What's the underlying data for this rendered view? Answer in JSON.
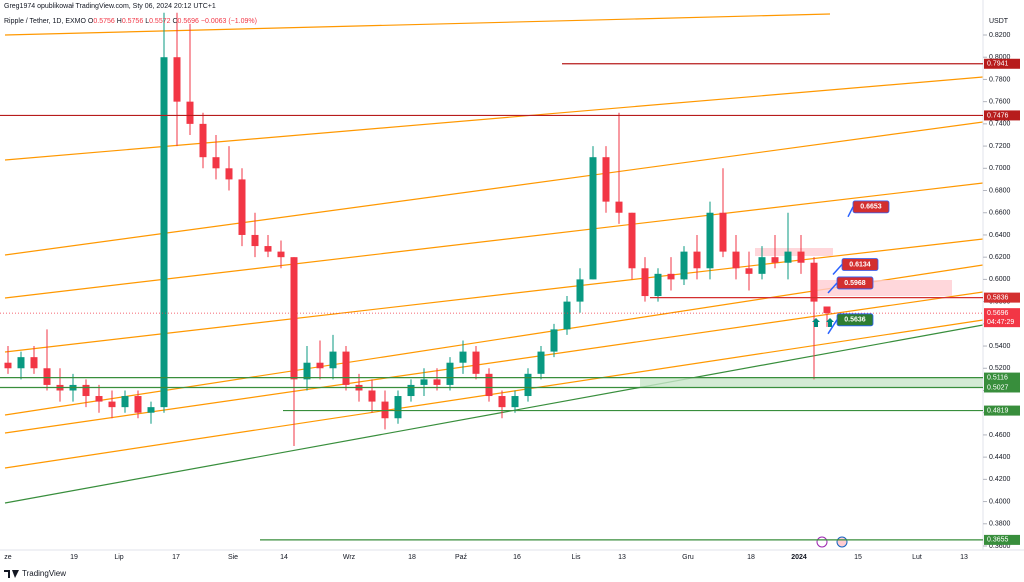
{
  "chart_data": {
    "type": "candlestick",
    "title": "Greg1974 opublikował TradingView.com, Sty 06, 2024 20:12 UTC+1",
    "symbol": "Ripple / Tether, 1D, EXMO",
    "ohlc_letters": [
      "O",
      "H",
      "L",
      "C"
    ],
    "change": "−0.0063 (−1.09%)",
    "currency": "USDT",
    "countdown": "04:47:29",
    "brand": "TradingView",
    "up_color": "#089981",
    "down_color": "#f23645",
    "ylim": [
      0.36,
      0.82
    ],
    "yticks": [
      {
        "value": 0.36,
        "label": "0.3600"
      },
      {
        "value": 0.38,
        "label": "0.3800"
      },
      {
        "value": 0.4,
        "label": "0.4000"
      },
      {
        "value": 0.42,
        "label": "0.4200"
      },
      {
        "value": 0.44,
        "label": "0.4400"
      },
      {
        "value": 0.46,
        "label": "0.4600"
      },
      {
        "value": 0.48,
        "label": "0.4800"
      },
      {
        "value": 0.5,
        "label": "0.5000"
      },
      {
        "value": 0.52,
        "label": "0.5200"
      },
      {
        "value": 0.54,
        "label": "0.5400"
      },
      {
        "value": 0.56,
        "label": "0.5600"
      },
      {
        "value": 0.58,
        "label": "0.5800"
      },
      {
        "value": 0.6,
        "label": "0.6000"
      },
      {
        "value": 0.62,
        "label": "0.6200"
      },
      {
        "value": 0.64,
        "label": "0.6400"
      },
      {
        "value": 0.66,
        "label": "0.6600"
      },
      {
        "value": 0.68,
        "label": "0.6800"
      },
      {
        "value": 0.7,
        "label": "0.7000"
      },
      {
        "value": 0.72,
        "label": "0.7200"
      },
      {
        "value": 0.74,
        "label": "0.7400"
      },
      {
        "value": 0.76,
        "label": "0.7600"
      },
      {
        "value": 0.78,
        "label": "0.7800"
      },
      {
        "value": 0.8,
        "label": "0.8000"
      },
      {
        "value": 0.82,
        "label": "0.8200"
      }
    ],
    "x_labels": [
      "ze",
      "19",
      "Lip",
      "17",
      "Sie",
      "14",
      "Wrz",
      "18",
      "Paź",
      "16",
      "Lis",
      "13",
      "Gru",
      "18",
      "2024",
      "15",
      "Lut",
      "13"
    ],
    "levels": [
      {
        "value": 0.7941,
        "color": "#b71c1c"
      },
      {
        "value": 0.7476,
        "color": "#b71c1c"
      },
      {
        "value": 0.5836,
        "color": "#d32f2f"
      },
      {
        "value": 0.5696,
        "color": "#f23645"
      },
      {
        "value": 0.5116,
        "color": "#388e3c"
      },
      {
        "value": 0.5027,
        "color": "#388e3c"
      },
      {
        "value": 0.4819,
        "color": "#388e3c"
      },
      {
        "value": 0.3655,
        "color": "#388e3c"
      }
    ],
    "callouts": [
      {
        "value": 0.6653,
        "color": "#d32f2f"
      },
      {
        "value": 0.6134,
        "color": "#d32f2f"
      },
      {
        "value": 0.5968,
        "color": "#d32f2f"
      },
      {
        "value": 0.5636,
        "color": "#2e7d32"
      }
    ],
    "candles": [
      [
        0.525,
        0.54,
        0.515,
        0.52
      ],
      [
        0.52,
        0.535,
        0.51,
        0.53
      ],
      [
        0.53,
        0.54,
        0.515,
        0.52
      ],
      [
        0.52,
        0.555,
        0.5,
        0.505
      ],
      [
        0.505,
        0.52,
        0.49,
        0.5
      ],
      [
        0.5,
        0.515,
        0.49,
        0.505
      ],
      [
        0.505,
        0.51,
        0.485,
        0.495
      ],
      [
        0.495,
        0.505,
        0.48,
        0.49
      ],
      [
        0.49,
        0.5,
        0.475,
        0.485
      ],
      [
        0.485,
        0.5,
        0.48,
        0.495
      ],
      [
        0.495,
        0.5,
        0.475,
        0.48
      ],
      [
        0.48,
        0.49,
        0.47,
        0.485
      ],
      [
        0.485,
        0.84,
        0.48,
        0.8
      ],
      [
        0.8,
        0.84,
        0.72,
        0.76
      ],
      [
        0.76,
        0.83,
        0.73,
        0.74
      ],
      [
        0.74,
        0.75,
        0.7,
        0.71
      ],
      [
        0.71,
        0.73,
        0.69,
        0.7
      ],
      [
        0.7,
        0.72,
        0.68,
        0.69
      ],
      [
        0.69,
        0.7,
        0.63,
        0.64
      ],
      [
        0.64,
        0.66,
        0.62,
        0.63
      ],
      [
        0.63,
        0.64,
        0.62,
        0.625
      ],
      [
        0.625,
        0.635,
        0.61,
        0.62
      ],
      [
        0.62,
        0.62,
        0.45,
        0.51
      ],
      [
        0.51,
        0.54,
        0.5,
        0.525
      ],
      [
        0.525,
        0.545,
        0.51,
        0.52
      ],
      [
        0.52,
        0.55,
        0.51,
        0.535
      ],
      [
        0.535,
        0.54,
        0.5,
        0.505
      ],
      [
        0.505,
        0.515,
        0.49,
        0.5
      ],
      [
        0.5,
        0.51,
        0.48,
        0.49
      ],
      [
        0.49,
        0.5,
        0.465,
        0.475
      ],
      [
        0.475,
        0.5,
        0.47,
        0.495
      ],
      [
        0.495,
        0.51,
        0.49,
        0.505
      ],
      [
        0.505,
        0.52,
        0.495,
        0.51
      ],
      [
        0.51,
        0.52,
        0.5,
        0.505
      ],
      [
        0.505,
        0.53,
        0.5,
        0.525
      ],
      [
        0.525,
        0.545,
        0.515,
        0.535
      ],
      [
        0.535,
        0.54,
        0.51,
        0.515
      ],
      [
        0.515,
        0.52,
        0.49,
        0.495
      ],
      [
        0.495,
        0.5,
        0.475,
        0.485
      ],
      [
        0.485,
        0.5,
        0.48,
        0.495
      ],
      [
        0.495,
        0.52,
        0.49,
        0.515
      ],
      [
        0.515,
        0.54,
        0.51,
        0.535
      ],
      [
        0.535,
        0.56,
        0.53,
        0.555
      ],
      [
        0.555,
        0.585,
        0.55,
        0.58
      ],
      [
        0.58,
        0.61,
        0.57,
        0.6
      ],
      [
        0.6,
        0.72,
        0.6,
        0.71
      ],
      [
        0.71,
        0.72,
        0.66,
        0.67
      ],
      [
        0.67,
        0.75,
        0.65,
        0.66
      ],
      [
        0.66,
        0.66,
        0.6,
        0.61
      ],
      [
        0.61,
        0.62,
        0.58,
        0.585
      ],
      [
        0.585,
        0.61,
        0.58,
        0.605
      ],
      [
        0.605,
        0.62,
        0.59,
        0.6
      ],
      [
        0.6,
        0.63,
        0.595,
        0.625
      ],
      [
        0.625,
        0.64,
        0.6,
        0.61
      ],
      [
        0.61,
        0.67,
        0.6,
        0.66
      ],
      [
        0.66,
        0.7,
        0.62,
        0.625
      ],
      [
        0.625,
        0.64,
        0.6,
        0.61
      ],
      [
        0.61,
        0.625,
        0.59,
        0.605
      ],
      [
        0.605,
        0.63,
        0.6,
        0.62
      ],
      [
        0.62,
        0.64,
        0.61,
        0.615
      ],
      [
        0.615,
        0.66,
        0.6,
        0.625
      ],
      [
        0.625,
        0.64,
        0.605,
        0.615
      ],
      [
        0.615,
        0.62,
        0.51,
        0.58
      ],
      [
        0.5756,
        0.5756,
        0.5572,
        0.5696
      ]
    ]
  }
}
